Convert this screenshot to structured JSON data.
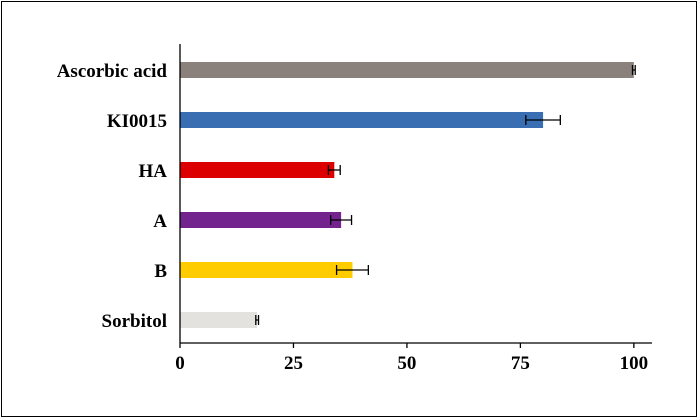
{
  "chart_data": {
    "type": "bar",
    "orientation": "horizontal",
    "title": "",
    "xlabel": "",
    "ylabel": "",
    "categories": [
      "Ascorbic acid",
      "KI0015",
      "HA",
      "A",
      "B",
      "Sorbitol"
    ],
    "values": [
      100,
      80,
      34,
      35.5,
      38,
      17
    ],
    "errors": [
      0.3,
      3.8,
      1.3,
      2.3,
      3.5,
      0.3
    ],
    "colors": [
      "#8A817C",
      "#3A6EB2",
      "#DD0000",
      "#72238D",
      "#FFCC00",
      "#E3E2DE"
    ],
    "xlim": [
      0,
      104
    ],
    "xticks": [
      0,
      25,
      50,
      75,
      100
    ],
    "grid": false,
    "legend": "none"
  }
}
